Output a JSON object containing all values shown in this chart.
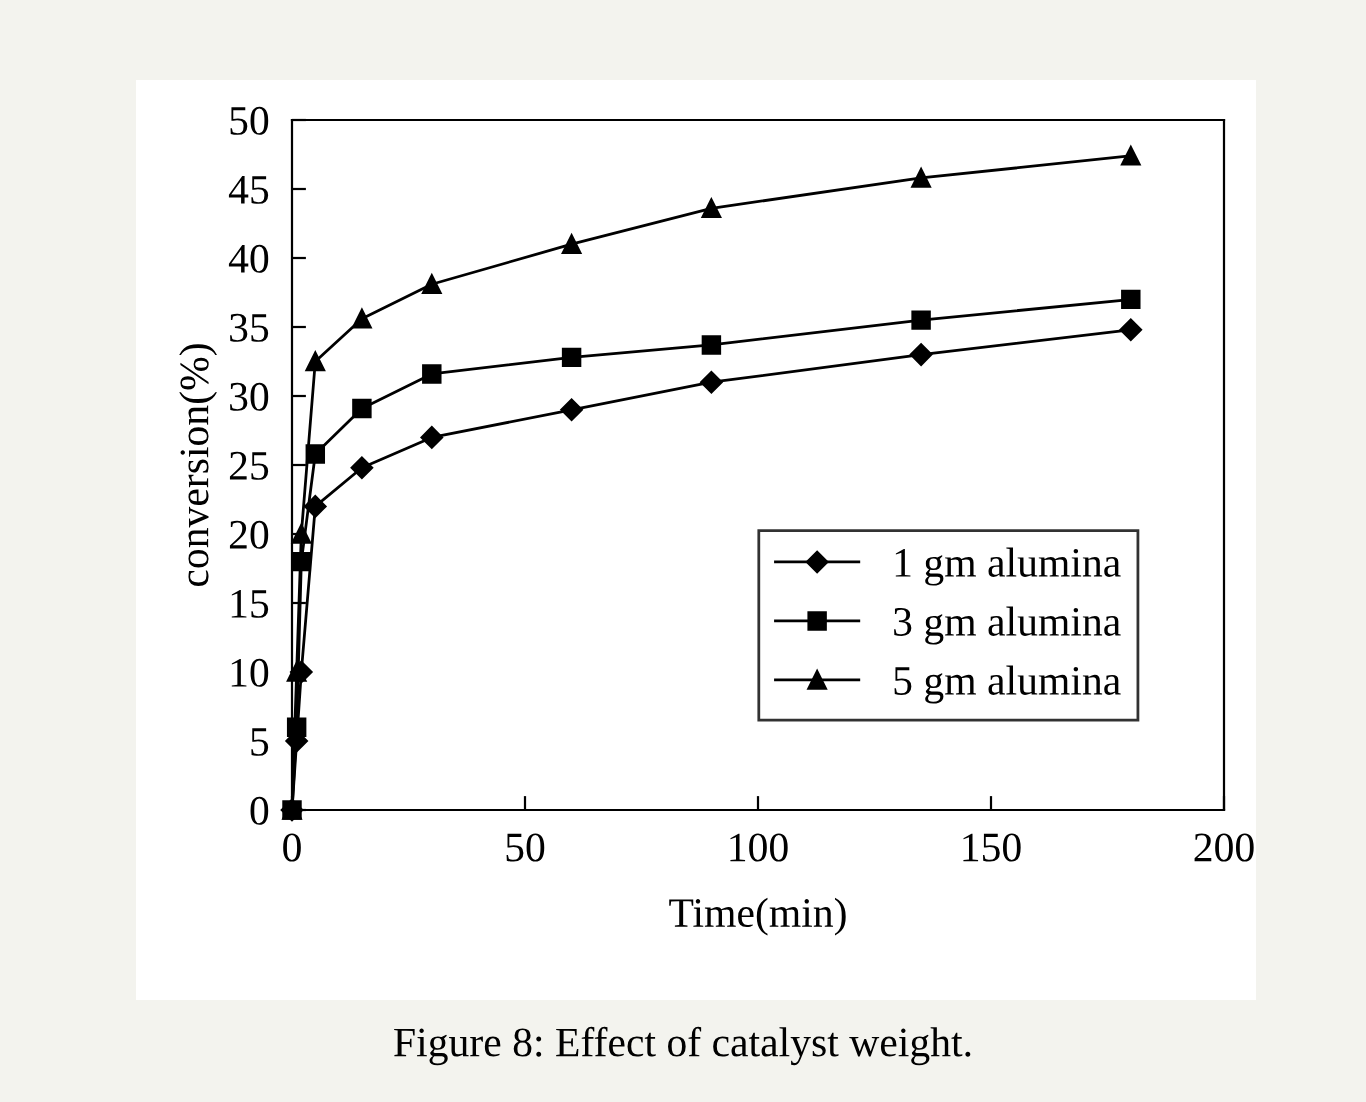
{
  "chart_data": {
    "type": "line",
    "xlabel": "Time(min)",
    "ylabel": "conversion(%)",
    "x": [
      0,
      1,
      2,
      5,
      15,
      30,
      60,
      90,
      135,
      180
    ],
    "series": [
      {
        "name": "1 gm alumina",
        "color": "#000000",
        "marker": "diamond",
        "values": [
          0,
          5,
          10,
          22,
          24.8,
          27,
          29,
          31,
          33,
          34.8
        ]
      },
      {
        "name": "3 gm alumina",
        "color": "#000000",
        "marker": "square",
        "values": [
          0,
          6,
          18,
          25.8,
          29.1,
          31.6,
          32.8,
          33.7,
          35.5,
          37
        ]
      },
      {
        "name": "5 gm alumina",
        "color": "#000000",
        "marker": "triangle",
        "values": [
          0,
          10,
          20,
          32.5,
          35.6,
          38.1,
          41,
          43.6,
          45.8,
          47.4
        ]
      }
    ],
    "xlim": [
      0,
      200
    ],
    "xticks": [
      0,
      50,
      100,
      150,
      200
    ],
    "ylim": [
      0,
      50
    ],
    "yticks": [
      0,
      5,
      10,
      15,
      20,
      25,
      30,
      35,
      40,
      45,
      50
    ],
    "grid": false,
    "legend": "bottom right",
    "line_style": "solid",
    "annotations": [
      "Figure 8: Effect of catalyst weight."
    ]
  }
}
